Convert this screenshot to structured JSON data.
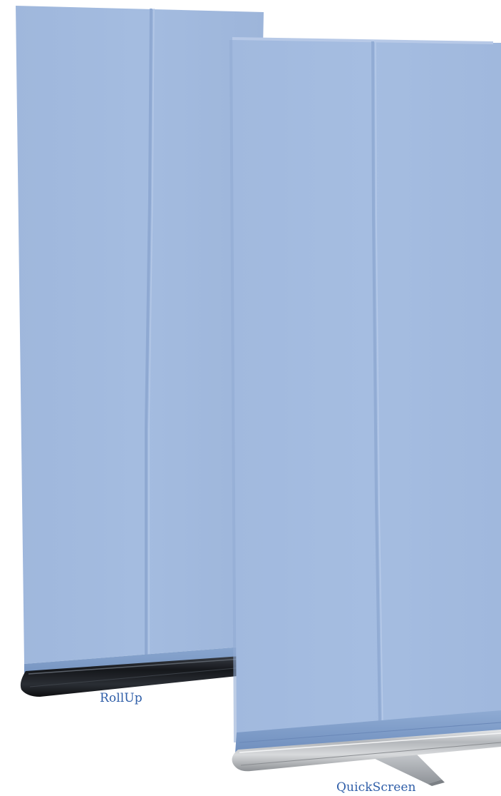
{
  "products": [
    {
      "name": "RollUp",
      "banner_color": "#a3bbdf",
      "base_color": "#1b1e22"
    },
    {
      "name": "QuickScreen",
      "banner_color": "#a3bbdf",
      "base_color": "#b9bcbf"
    }
  ],
  "caption_color": "#2f5ea8"
}
